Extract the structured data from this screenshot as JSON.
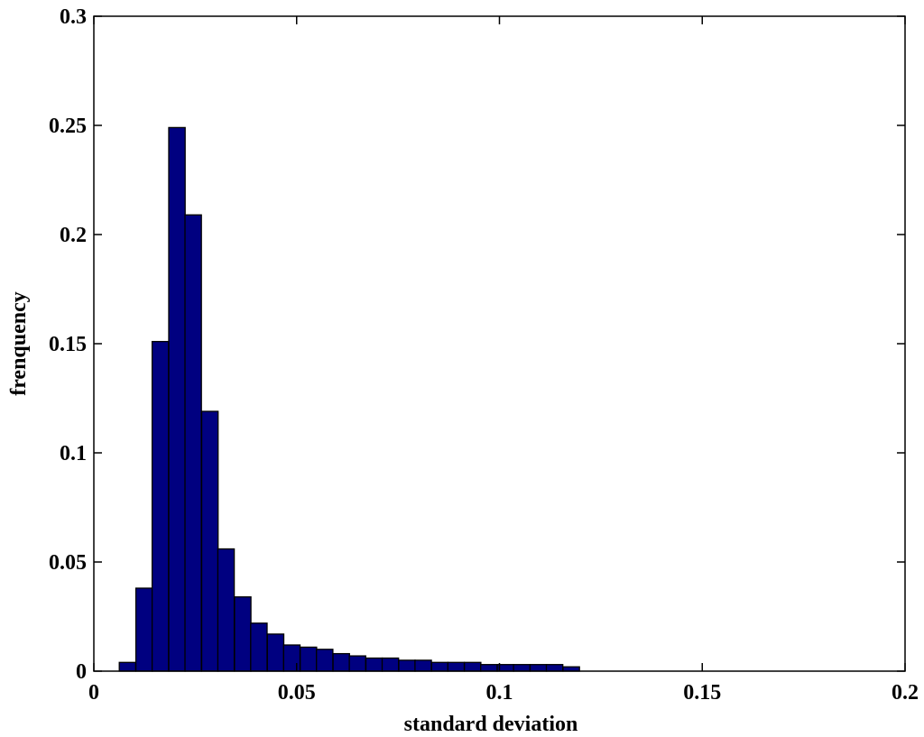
{
  "chart_data": {
    "type": "bar",
    "histogram": true,
    "title": "",
    "xlabel": "standard deviation",
    "ylabel": "frenquency",
    "xlim": [
      0,
      0.2
    ],
    "ylim": [
      0,
      0.3
    ],
    "xticks": [
      0,
      0.05,
      0.1,
      0.15,
      0.2
    ],
    "xtick_labels": [
      "0",
      "0.05",
      "0.1",
      "0.15",
      "0.2"
    ],
    "yticks": [
      0,
      0.05,
      0.1,
      0.15,
      0.2,
      0.25,
      0.3
    ],
    "ytick_labels": [
      "0",
      "0.05",
      "0.1",
      "0.15",
      "0.2",
      "0.25",
      "0.3"
    ],
    "grid": false,
    "bar_color": "#000080",
    "bin_width": 0.00405,
    "bin_centers": [
      0.0083,
      0.0124,
      0.0164,
      0.0205,
      0.0245,
      0.0286,
      0.0326,
      0.0367,
      0.0407,
      0.0448,
      0.0488,
      0.0529,
      0.0569,
      0.061,
      0.065,
      0.0691,
      0.0731,
      0.0772,
      0.0812,
      0.0853,
      0.0893,
      0.0934,
      0.0974,
      0.1015,
      0.1055,
      0.1096,
      0.1136,
      0.1177
    ],
    "values": [
      0.004,
      0.038,
      0.151,
      0.249,
      0.209,
      0.119,
      0.056,
      0.034,
      0.022,
      0.017,
      0.012,
      0.011,
      0.01,
      0.008,
      0.007,
      0.006,
      0.006,
      0.005,
      0.005,
      0.004,
      0.004,
      0.004,
      0.003,
      0.003,
      0.003,
      0.003,
      0.003,
      0.002
    ]
  }
}
